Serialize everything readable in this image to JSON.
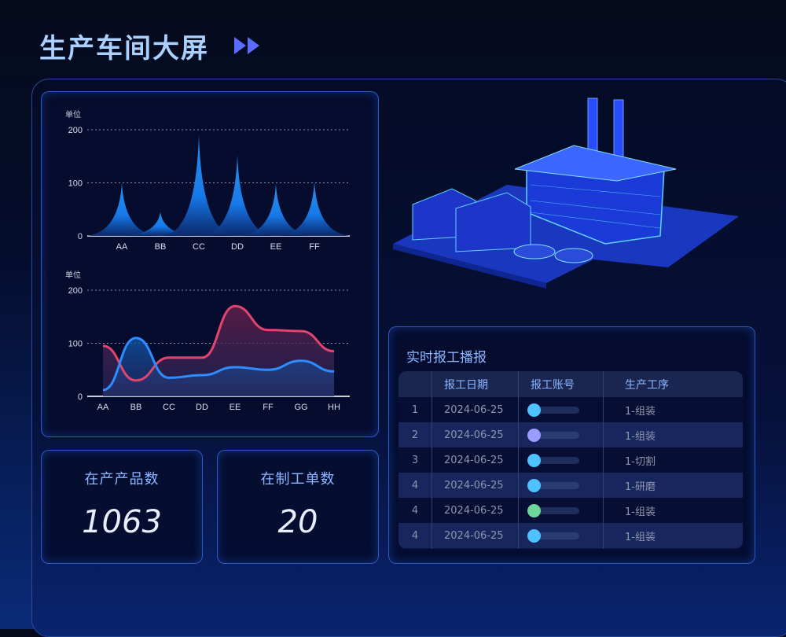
{
  "header": {
    "title": "生产车间大屏",
    "arrow_icon": "double-chevron-right-icon"
  },
  "chart_data": [
    {
      "type": "area",
      "subtype": "pictorial-spike",
      "ylabel": "单位",
      "ylim": [
        0,
        200
      ],
      "yticks": [
        0,
        100,
        200
      ],
      "grid": true,
      "categories": [
        "AA",
        "BB",
        "CC",
        "DD",
        "EE",
        "FF"
      ],
      "values": [
        100,
        45,
        190,
        152,
        98,
        102
      ],
      "color": "#1e90ff"
    },
    {
      "type": "area",
      "ylabel": "单位",
      "ylim": [
        0,
        200
      ],
      "yticks": [
        0,
        100,
        200
      ],
      "grid": true,
      "categories": [
        "AA",
        "BB",
        "CC",
        "DD",
        "EE",
        "FF",
        "GG",
        "HH"
      ],
      "series": [
        {
          "values": [
            95,
            30,
            73,
            73,
            170,
            125,
            123,
            85
          ],
          "color": "#e0456f"
        },
        {
          "values": [
            12,
            110,
            35,
            40,
            55,
            50,
            67,
            47
          ],
          "color": "#2f8cff"
        }
      ]
    }
  ],
  "stats": [
    {
      "label": "在产产品数",
      "value": "1063"
    },
    {
      "label": "在制工单数",
      "value": "20"
    }
  ],
  "report": {
    "title": "实时报工播报",
    "columns": [
      "",
      "报工日期",
      "报工账号",
      "生产工序"
    ],
    "rows": [
      {
        "no": "1",
        "date": "2024-06-25",
        "color": "#4cc3ff",
        "process": "1-组装"
      },
      {
        "no": "2",
        "date": "2024-06-25",
        "color": "#9b9cff",
        "process": "1-组装"
      },
      {
        "no": "3",
        "date": "2024-06-25",
        "color": "#4cc3ff",
        "process": "1-切割"
      },
      {
        "no": "4",
        "date": "2024-06-25",
        "color": "#4cc3ff",
        "process": "1-研磨"
      },
      {
        "no": "4",
        "date": "2024-06-25",
        "color": "#6fd69a",
        "process": "1-组装"
      },
      {
        "no": "4",
        "date": "2024-06-25",
        "color": "#4cc3ff",
        "process": "1-组装"
      }
    ]
  },
  "illustration": {
    "icon": "factory-3d-icon"
  }
}
